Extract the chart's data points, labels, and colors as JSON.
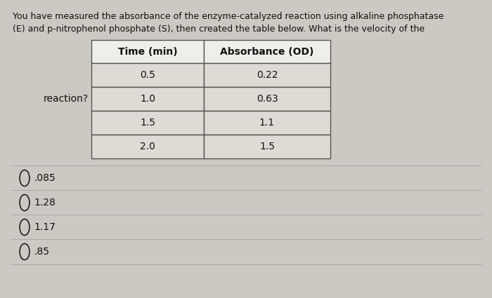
{
  "question_text_line1": "You have measured the absorbance of the enzyme-catalyzed reaction using alkaline phosphatase",
  "question_text_line2": "(E) and p-nitrophenol phosphate (S), then created the table below. What is the velocity of the",
  "reaction_label": "reaction?",
  "col1_header": "Time (min)",
  "col2_header": "Absorbance (OD)",
  "table_data": [
    [
      "0.5",
      "0.22"
    ],
    [
      "1.0",
      "0.63"
    ],
    [
      "1.5",
      "1.1"
    ],
    [
      "2.0",
      "1.5"
    ]
  ],
  "choices": [
    ".085",
    "1.28",
    "1.17",
    ".85"
  ],
  "bg_color": "#ccc9c2",
  "header_bg": "#f0eeea",
  "cell_bg": "#dedad4",
  "border_color": "#555555",
  "text_color": "#111111",
  "font_size_question": 9.0,
  "font_size_table": 10.0,
  "font_size_choices": 10.0
}
